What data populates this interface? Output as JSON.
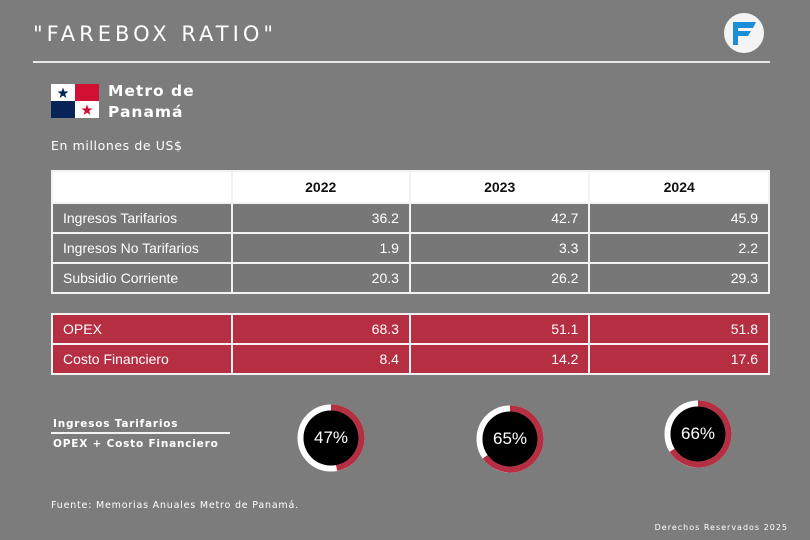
{
  "title": "\"FAREBOX RATIO\"",
  "logo_icon": "f-logo-icon",
  "org_name_line1": "Metro de",
  "org_name_line2": "Panamá",
  "flag_icon": "panama-flag-icon",
  "units_note": "En millones de US$",
  "years": [
    "2022",
    "2023",
    "2024"
  ],
  "income_rows": [
    {
      "label": "Ingresos Tarifarios",
      "values": [
        "36.2",
        "42.7",
        "45.9"
      ]
    },
    {
      "label": "Ingresos No Tarifarios",
      "values": [
        "1.9",
        "3.3",
        "2.2"
      ]
    },
    {
      "label": "Subsidio Corriente",
      "values": [
        "20.3",
        "26.2",
        "29.3"
      ]
    }
  ],
  "cost_rows": [
    {
      "label": "OPEX",
      "values": [
        "68.3",
        "51.1",
        "51.8"
      ]
    },
    {
      "label": "Costo Financiero",
      "values": [
        "8.4",
        "14.2",
        "17.6"
      ]
    }
  ],
  "ratio_formula": {
    "numerator": "Ingresos Tarifarios",
    "denominator": "OPEX + Costo Financiero"
  },
  "ratios": [
    {
      "year": "2022",
      "label": "47%",
      "fraction": 0.47
    },
    {
      "year": "2023",
      "label": "65%",
      "fraction": 0.65
    },
    {
      "year": "2024",
      "label": "66%",
      "fraction": 0.66
    }
  ],
  "colors": {
    "background": "#7c7c7c",
    "accent_red": "#b52e42",
    "ring_white": "#ffffff",
    "donut_center": "#000000"
  },
  "source": "Fuente: Memorias Anuales Metro de Panamá.",
  "rights": "Derechos Reservados 2025"
}
